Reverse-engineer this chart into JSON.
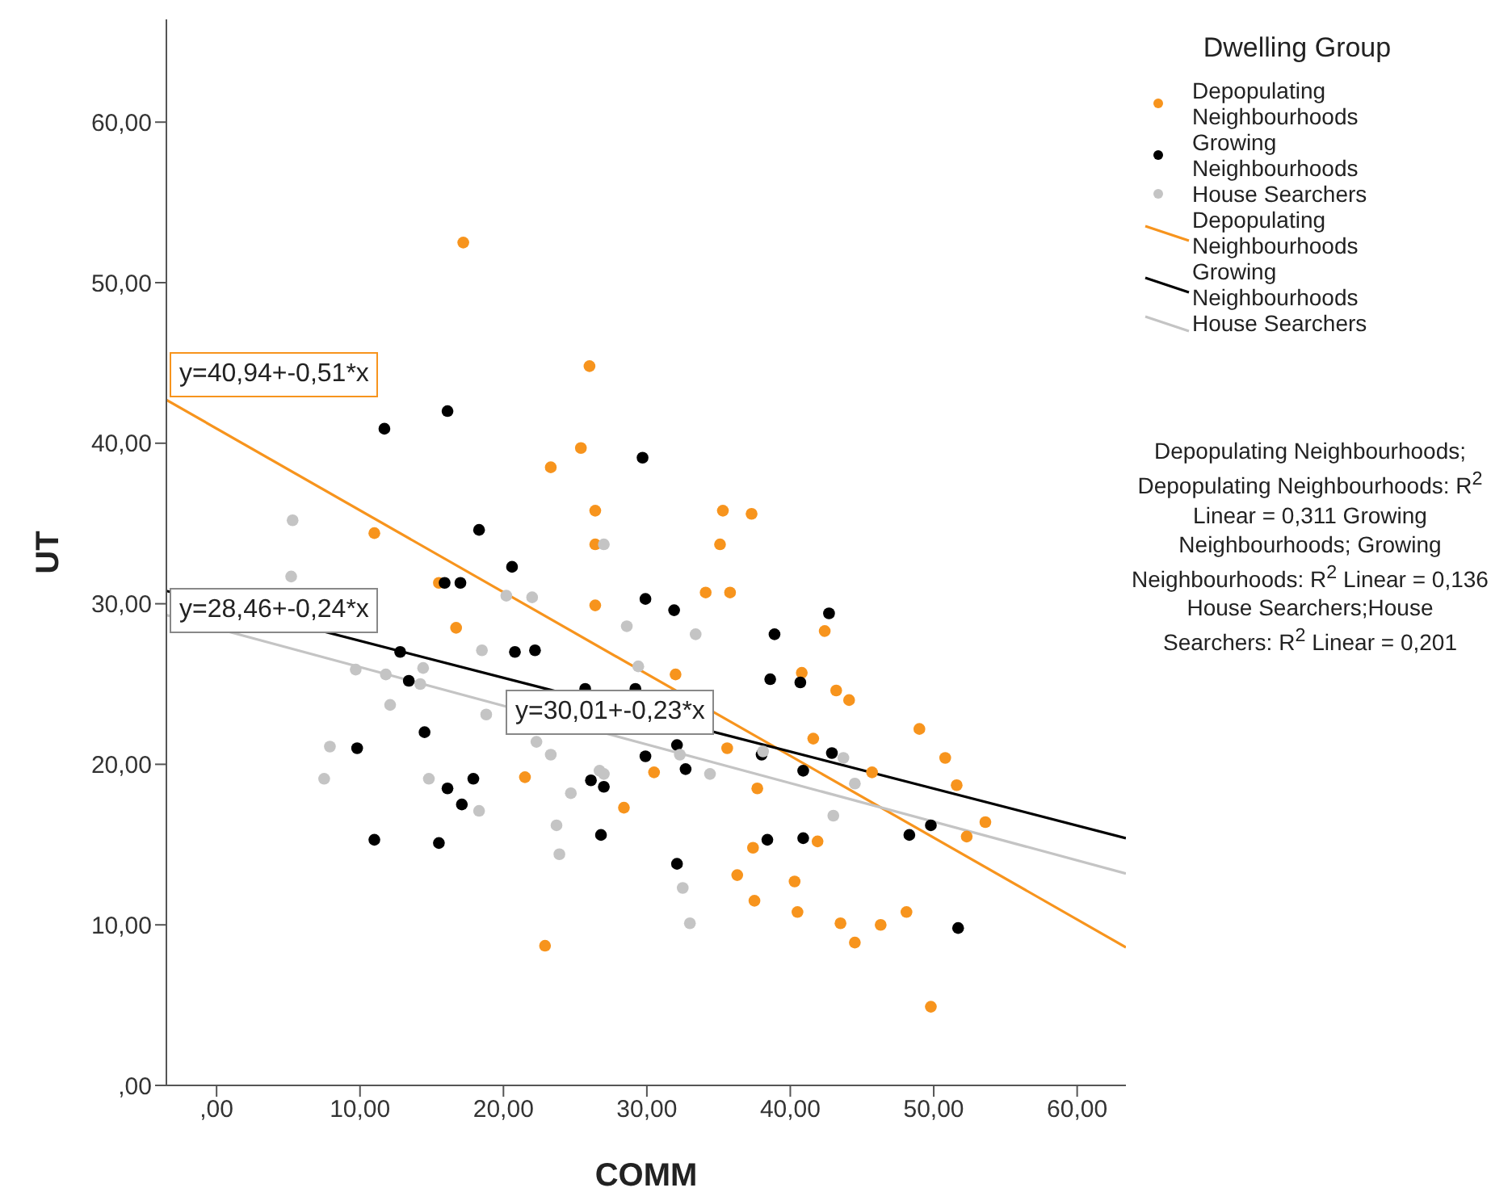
{
  "chart_data": {
    "type": "scatter",
    "xlabel": "COMM",
    "ylabel": "UT",
    "legend_title": "Dwelling Group",
    "xlim": [
      -3.5,
      63.4
    ],
    "ylim": [
      0,
      66.4
    ],
    "xticks": [
      {
        "value": 0,
        "label": ",00"
      },
      {
        "value": 10,
        "label": "10,00"
      },
      {
        "value": 20,
        "label": "20,00"
      },
      {
        "value": 30,
        "label": "30,00"
      },
      {
        "value": 40,
        "label": "40,00"
      },
      {
        "value": 50,
        "label": "50,00"
      },
      {
        "value": 60,
        "label": "60,00"
      }
    ],
    "yticks": [
      {
        "value": 0,
        "label": ",00"
      },
      {
        "value": 10,
        "label": "10,00"
      },
      {
        "value": 20,
        "label": "20,00"
      },
      {
        "value": 30,
        "label": "30,00"
      },
      {
        "value": 40,
        "label": "40,00"
      },
      {
        "value": 50,
        "label": "50,00"
      },
      {
        "value": 60,
        "label": "60,00"
      }
    ],
    "grid": false,
    "legend": "right",
    "marker": "circle",
    "series": [
      {
        "name": "Depopulating Neighbourhoods",
        "color": "#f7941d",
        "x": [
          17.2,
          26.0,
          11.0,
          25.4,
          23.3,
          26.4,
          26.4,
          26.4,
          15.5,
          16.7,
          21.5,
          28.4,
          22.9,
          32.0,
          30.5,
          35.3,
          37.3,
          35.1,
          34.1,
          35.8,
          42.4,
          40.8,
          43.2,
          44.1,
          41.6,
          35.6,
          37.7,
          49.0,
          50.8,
          51.6,
          45.7,
          53.6,
          52.3,
          37.4,
          41.9,
          36.3,
          40.3,
          37.5,
          40.5,
          43.5,
          46.3,
          48.1,
          44.5,
          49.8
        ],
        "values": [
          52.5,
          44.8,
          34.4,
          39.7,
          38.5,
          35.8,
          33.7,
          29.9,
          31.3,
          28.5,
          19.2,
          17.3,
          8.7,
          25.6,
          19.5,
          35.8,
          35.6,
          33.7,
          30.7,
          30.7,
          28.3,
          25.7,
          24.6,
          24.0,
          21.6,
          21.0,
          18.5,
          22.2,
          20.4,
          18.7,
          19.5,
          16.4,
          15.5,
          14.8,
          15.2,
          13.1,
          12.7,
          11.5,
          10.8,
          10.1,
          10.0,
          10.8,
          8.9,
          4.9
        ]
      },
      {
        "name": "Growing Neighbourhoods",
        "color": "#000000",
        "x": [
          16.1,
          11.7,
          29.7,
          18.3,
          20.6,
          15.9,
          17.0,
          29.9,
          12.8,
          20.8,
          22.2,
          13.4,
          14.5,
          9.8,
          17.9,
          16.1,
          17.1,
          26.1,
          27.0,
          11.0,
          15.5,
          26.8,
          29.2,
          29.9,
          25.7,
          31.9,
          38.9,
          42.7,
          38.6,
          40.7,
          32.1,
          32.7,
          38.0,
          42.9,
          40.9,
          32.1,
          38.4,
          40.9,
          48.3,
          49.8,
          51.7
        ],
        "values": [
          42.0,
          40.9,
          39.1,
          34.6,
          32.3,
          31.3,
          31.3,
          30.3,
          27.0,
          27.0,
          27.1,
          25.2,
          22.0,
          21.0,
          19.1,
          18.5,
          17.5,
          19.0,
          18.6,
          15.3,
          15.1,
          15.6,
          24.7,
          20.5,
          24.7,
          29.6,
          28.1,
          29.4,
          25.3,
          25.1,
          21.2,
          19.7,
          20.6,
          20.7,
          19.6,
          13.8,
          15.3,
          15.4,
          15.6,
          16.2,
          9.8
        ]
      },
      {
        "name": "House Searchers",
        "color": "#c4c4c4",
        "x": [
          5.3,
          5.2,
          27.0,
          20.2,
          22.0,
          28.6,
          18.5,
          9.7,
          11.8,
          14.4,
          14.2,
          12.1,
          18.8,
          7.9,
          7.5,
          14.8,
          18.3,
          23.3,
          22.3,
          24.7,
          23.7,
          23.9,
          26.7,
          27.0,
          29.4,
          33.4,
          32.3,
          34.4,
          43.7,
          44.5,
          43.0,
          32.5,
          33.0,
          38.1
        ],
        "values": [
          35.2,
          31.7,
          33.7,
          30.5,
          30.4,
          28.6,
          27.1,
          25.9,
          25.6,
          26.0,
          25.0,
          23.7,
          23.1,
          21.1,
          19.1,
          19.1,
          17.1,
          20.6,
          21.4,
          18.2,
          16.2,
          14.4,
          19.6,
          19.4,
          26.1,
          28.1,
          20.6,
          19.4,
          20.4,
          18.8,
          16.8,
          12.3,
          10.1,
          20.8
        ]
      },
      {
        "name": "Depopulating Neighbourhoods",
        "type": "line",
        "marker": "none",
        "color": "#f7941d",
        "x": [
          -3.5,
          63.4
        ],
        "values": [
          42.7,
          8.6
        ]
      },
      {
        "name": "Growing Neighbourhoods",
        "type": "line",
        "marker": "none",
        "color": "#000000",
        "x": [
          -3.5,
          63.4
        ],
        "values": [
          30.8,
          15.4
        ]
      },
      {
        "name": "House Searchers",
        "type": "line",
        "marker": "none",
        "color": "#c4c4c4",
        "x": [
          -3.5,
          63.4
        ],
        "values": [
          29.3,
          13.2
        ]
      }
    ],
    "annotations": [
      "y=40,94+-0,51*x",
      "y=30,01+-0,23*x",
      "y=28,46+-0,24*x",
      "Depopulating Neighbourhoods; Depopulating Neighbourhoods: R$^{2}$ Linear = 0,311 Growing Neighbourhoods; Growing Neighbourhoods: R$^{2}$ Linear = 0,136 House Searchers;House Searchers: R$^{2}$ Linear = 0,201"
    ]
  }
}
